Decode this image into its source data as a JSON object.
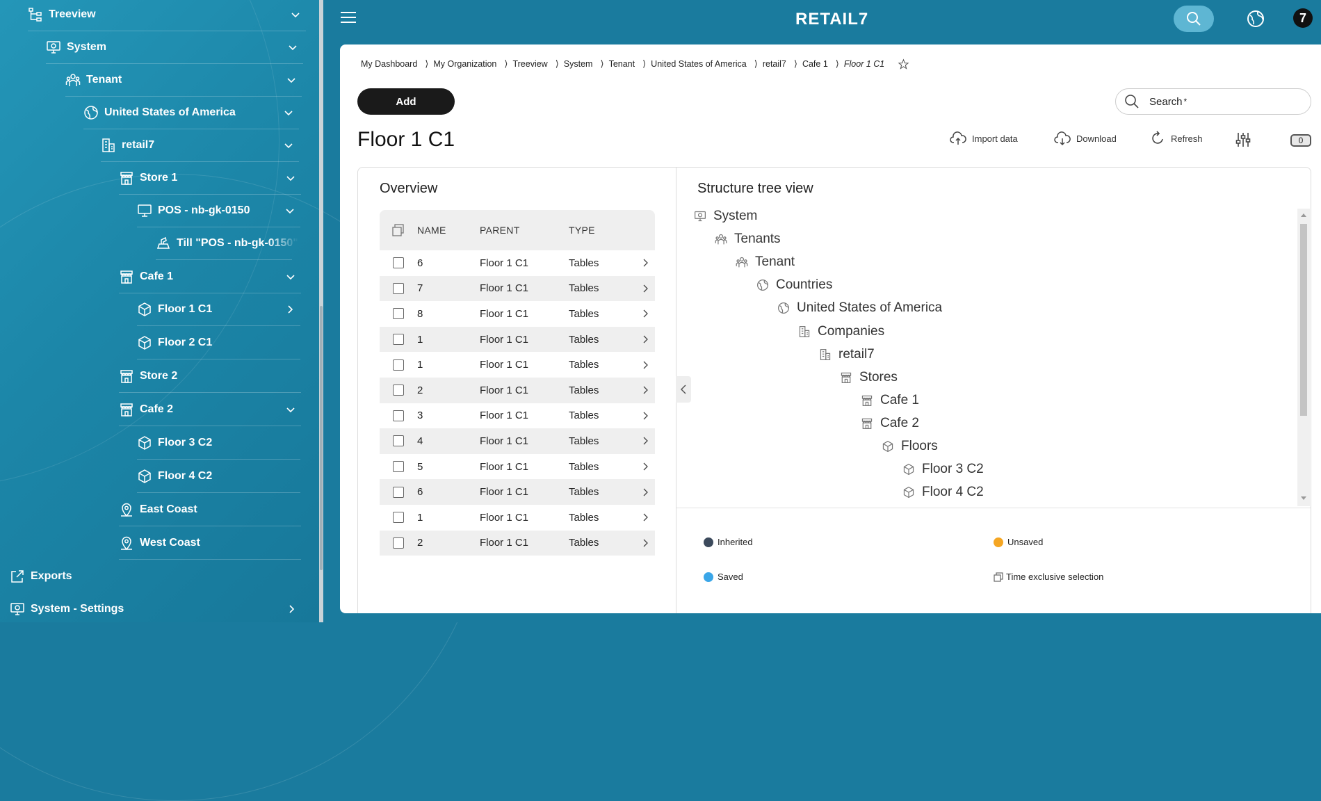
{
  "sidebar": {
    "items": [
      {
        "label": "Treeview",
        "icon": "treeview-icon",
        "chevron": "down"
      },
      {
        "label": "System",
        "icon": "system-monitor-icon",
        "chevron": "down"
      },
      {
        "label": "Tenant",
        "icon": "tenant-icon",
        "chevron": "down"
      },
      {
        "label": "United States of America",
        "icon": "globe-icon",
        "chevron": "down"
      },
      {
        "label": "retail7",
        "icon": "company-building-icon",
        "chevron": "down"
      },
      {
        "label": "Store 1",
        "icon": "store-icon",
        "chevron": "down"
      },
      {
        "label": "POS - nb-gk-0150",
        "icon": "pos-terminal-icon",
        "chevron": "down"
      },
      {
        "label": "Till \"POS - nb-gk-0150\"",
        "icon": "till-icon",
        "chevron": ""
      },
      {
        "label": "Cafe 1",
        "icon": "store-icon",
        "chevron": "down"
      },
      {
        "label": "Floor 1 C1",
        "icon": "floor-icon",
        "chevron": "right"
      },
      {
        "label": "Floor 2 C1",
        "icon": "floor-icon",
        "chevron": ""
      },
      {
        "label": "Store 2",
        "icon": "store-icon",
        "chevron": ""
      },
      {
        "label": "Cafe 2",
        "icon": "store-icon",
        "chevron": "down"
      },
      {
        "label": "Floor 3 C2",
        "icon": "floor-icon",
        "chevron": ""
      },
      {
        "label": "Floor 4 C2",
        "icon": "floor-icon",
        "chevron": ""
      },
      {
        "label": "East Coast",
        "icon": "location-pin-icon",
        "chevron": ""
      },
      {
        "label": "West Coast",
        "icon": "location-pin-icon",
        "chevron": ""
      },
      {
        "label": "Exports",
        "icon": "export-icon",
        "chevron": ""
      },
      {
        "label": "System - Settings",
        "icon": "system-monitor-icon",
        "chevron": "right"
      }
    ]
  },
  "header": {
    "logo": "RETAIL7",
    "avatar_initial": "7"
  },
  "breadcrumb": [
    "My Dashboard",
    "My Organization",
    "Treeview",
    "System",
    "Tenant",
    "United States of America",
    "retail7",
    "Cafe 1",
    "Floor 1 C1"
  ],
  "toolbar": {
    "add_label": "Add",
    "search_placeholder": "Search",
    "search_required_mark": "*",
    "import_label": "Import data",
    "download_label": "Download",
    "refresh_label": "Refresh",
    "count": "0"
  },
  "page": {
    "title": "Floor 1 C1"
  },
  "overview": {
    "title": "Overview",
    "columns": [
      "NAME",
      "PARENT",
      "TYPE"
    ],
    "rows": [
      {
        "name": "6",
        "parent": "Floor 1 C1",
        "type": "Tables"
      },
      {
        "name": "7",
        "parent": "Floor 1 C1",
        "type": "Tables"
      },
      {
        "name": "8",
        "parent": "Floor 1 C1",
        "type": "Tables"
      },
      {
        "name": "1",
        "parent": "Floor 1 C1",
        "type": "Tables"
      },
      {
        "name": "1",
        "parent": "Floor 1 C1",
        "type": "Tables"
      },
      {
        "name": "2",
        "parent": "Floor 1 C1",
        "type": "Tables"
      },
      {
        "name": "3",
        "parent": "Floor 1 C1",
        "type": "Tables"
      },
      {
        "name": "4",
        "parent": "Floor 1 C1",
        "type": "Tables"
      },
      {
        "name": "5",
        "parent": "Floor 1 C1",
        "type": "Tables"
      },
      {
        "name": "6",
        "parent": "Floor 1 C1",
        "type": "Tables"
      },
      {
        "name": "1",
        "parent": "Floor 1 C1",
        "type": "Tables"
      },
      {
        "name": "2",
        "parent": "Floor 1 C1",
        "type": "Tables"
      }
    ]
  },
  "structure_tree": {
    "title": "Structure tree view",
    "nodes": [
      {
        "label": "System",
        "icon": "system-monitor-icon"
      },
      {
        "label": "Tenants",
        "icon": "tenant-icon"
      },
      {
        "label": "Tenant",
        "icon": "tenant-icon"
      },
      {
        "label": "Countries",
        "icon": "globe-icon"
      },
      {
        "label": "United States of America",
        "icon": "globe-icon"
      },
      {
        "label": "Companies",
        "icon": "company-building-icon"
      },
      {
        "label": "retail7",
        "icon": "company-building-icon"
      },
      {
        "label": "Stores",
        "icon": "store-icon"
      },
      {
        "label": "Cafe 1",
        "icon": "store-icon"
      },
      {
        "label": "Cafe 2",
        "icon": "store-icon"
      },
      {
        "label": "Floors",
        "icon": "floor-icon"
      },
      {
        "label": "Floor 3 C2",
        "icon": "floor-icon"
      },
      {
        "label": "Floor 4 C2",
        "icon": "floor-icon"
      }
    ]
  },
  "legend": {
    "inherited": "Inherited",
    "unsaved": "Unsaved",
    "saved": "Saved",
    "time_exclusive": "Time exclusive selection",
    "colors": {
      "inherited": "#3c4a5c",
      "unsaved": "#f5a623",
      "saved": "#3aa6e8"
    }
  },
  "colors": {
    "brand": "#1a7b9e",
    "sidebar": "#1f8db0",
    "primary_button": "#1a1a1a"
  }
}
